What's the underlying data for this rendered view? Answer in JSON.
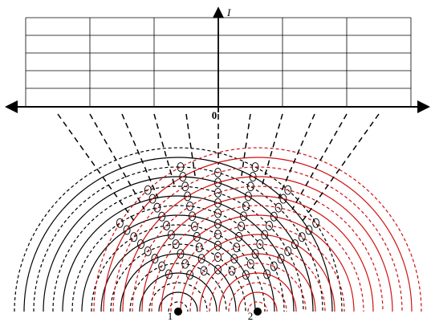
{
  "labels": {
    "intensity_axis": "I",
    "origin": "0",
    "source_1": "1",
    "source_2": "2"
  }
}
